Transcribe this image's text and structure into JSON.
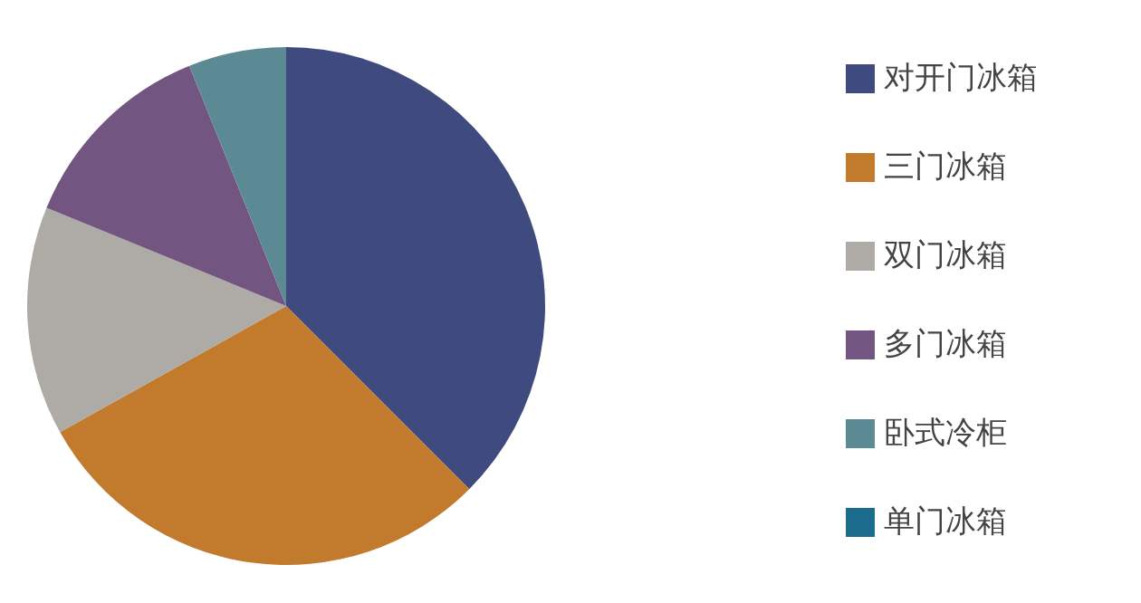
{
  "chart_data": {
    "type": "pie",
    "categories": [
      "对开门冰箱",
      "三门冰箱",
      "双门冰箱",
      "多门冰箱",
      "卧式冷柜",
      "单门冰箱"
    ],
    "values": [
      37.5,
      29.4,
      14.3,
      12.7,
      6.1,
      0
    ],
    "colors": [
      "#3f4a7e",
      "#c27a2c",
      "#aeaba6",
      "#735581",
      "#5c8a94",
      "#1b6b8d"
    ],
    "legend": "right"
  }
}
